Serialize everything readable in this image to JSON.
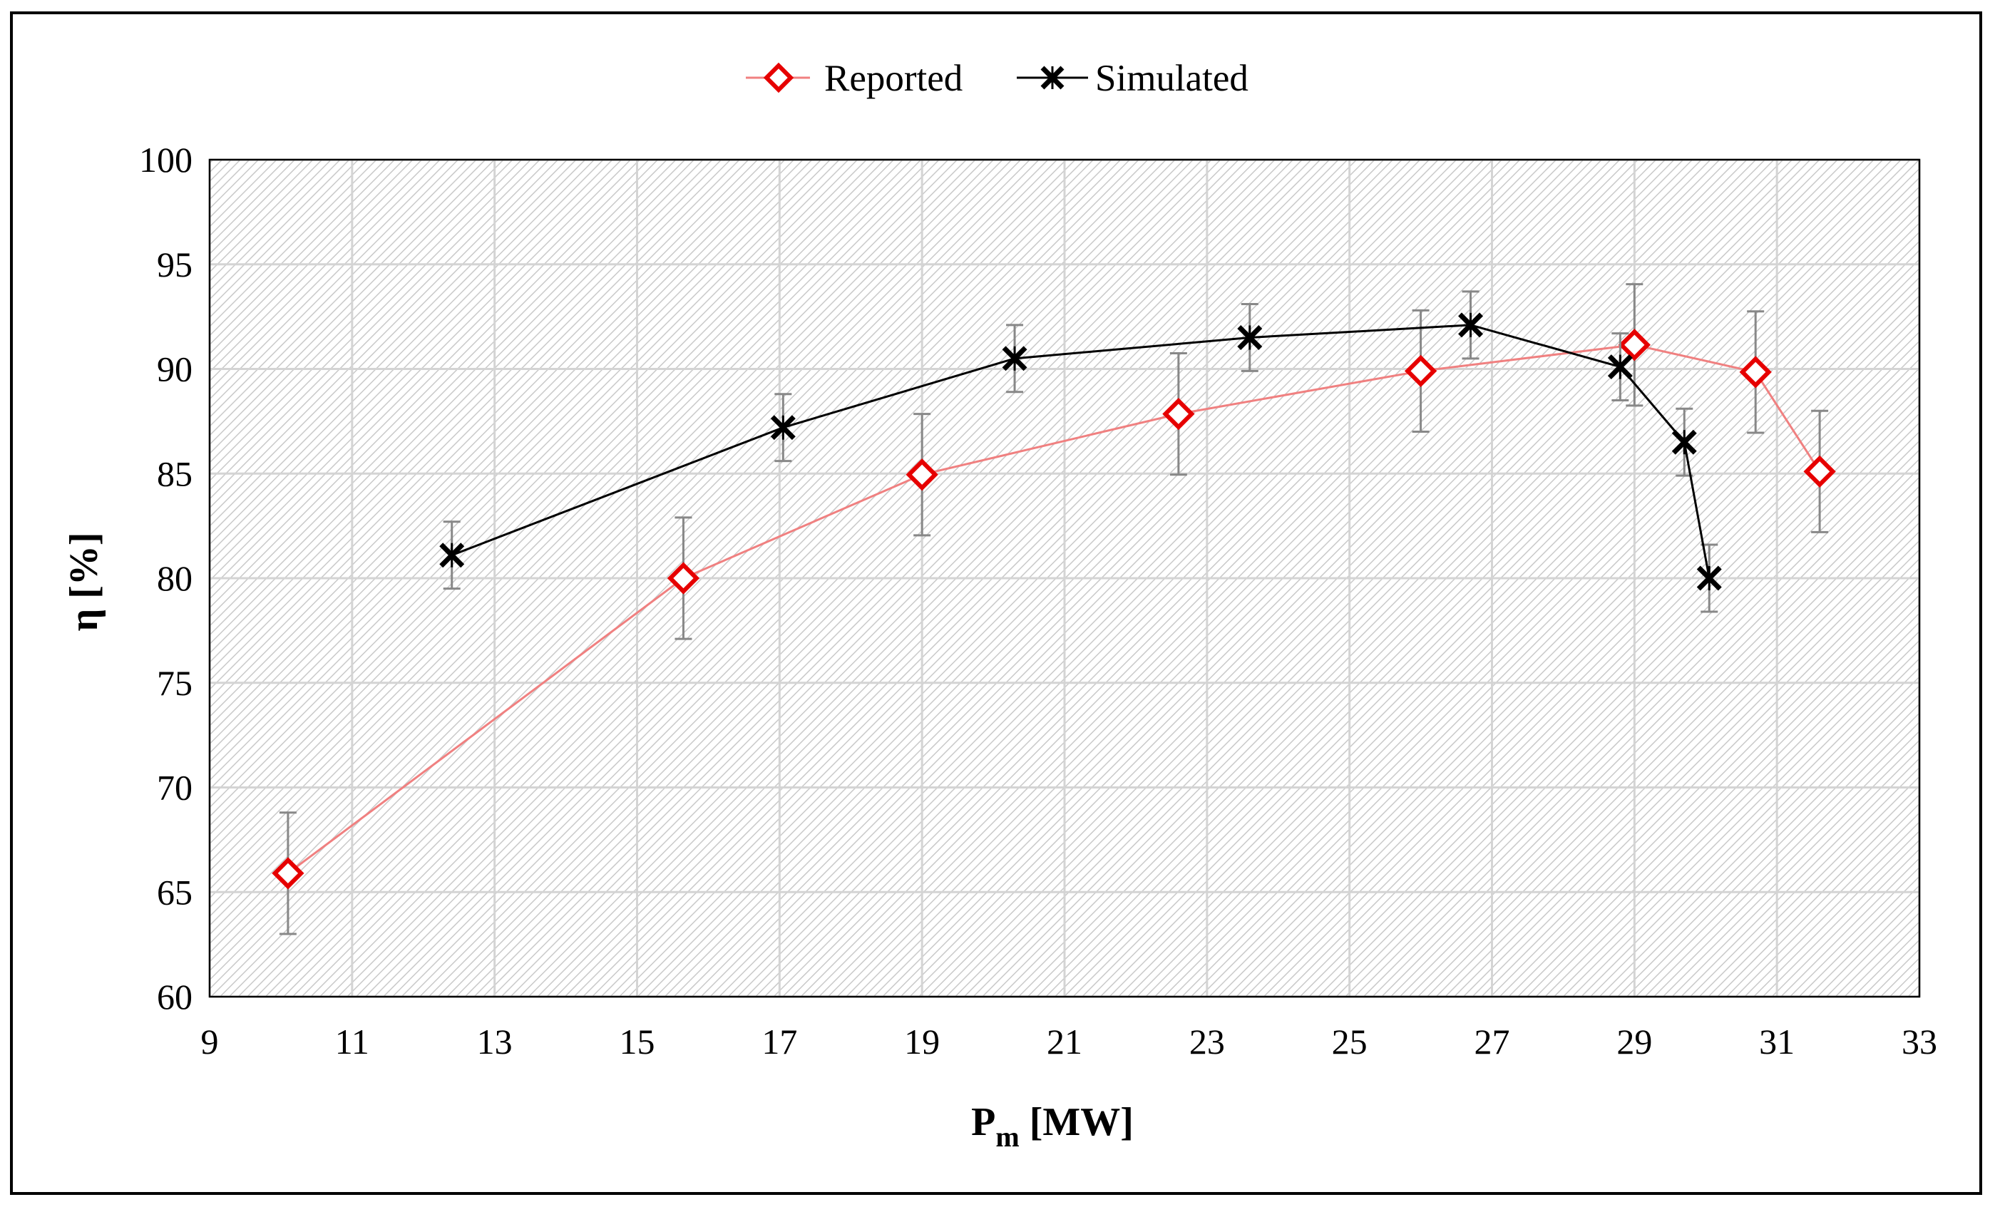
{
  "chart_data": {
    "type": "line",
    "title": "",
    "xlabel": "P",
    "xlabel_subscript": "m",
    "xlabel_unit": " [MW]",
    "ylabel": "η [%]",
    "xlim": [
      9,
      33
    ],
    "ylim": [
      60,
      100
    ],
    "xticks": [
      9,
      11,
      13,
      15,
      17,
      19,
      21,
      23,
      25,
      27,
      29,
      31,
      33
    ],
    "yticks": [
      60,
      65,
      70,
      75,
      80,
      85,
      90,
      95,
      100
    ],
    "grid": true,
    "legend_position": "top-center",
    "series": [
      {
        "name": "Reported",
        "color": "#e60000",
        "line_color": "#f08080",
        "marker": "diamond",
        "x": [
          10.1,
          15.65,
          19.0,
          22.6,
          26.0,
          29.0,
          30.7,
          31.6
        ],
        "y": [
          65.9,
          80.0,
          84.95,
          87.85,
          89.9,
          91.15,
          89.85,
          85.1
        ],
        "error": [
          2.9,
          2.9,
          2.9,
          2.9,
          2.9,
          2.9,
          2.9,
          2.9
        ]
      },
      {
        "name": "Simulated",
        "color": "#000000",
        "line_color": "#000000",
        "marker": "x-star",
        "x": [
          12.4,
          17.05,
          20.3,
          23.6,
          26.7,
          28.8,
          29.7,
          30.05
        ],
        "y": [
          81.1,
          87.2,
          90.5,
          91.5,
          92.1,
          90.1,
          86.5,
          80.0
        ],
        "error": [
          1.6,
          1.6,
          1.6,
          1.6,
          1.6,
          1.6,
          1.6,
          1.6
        ]
      }
    ]
  }
}
